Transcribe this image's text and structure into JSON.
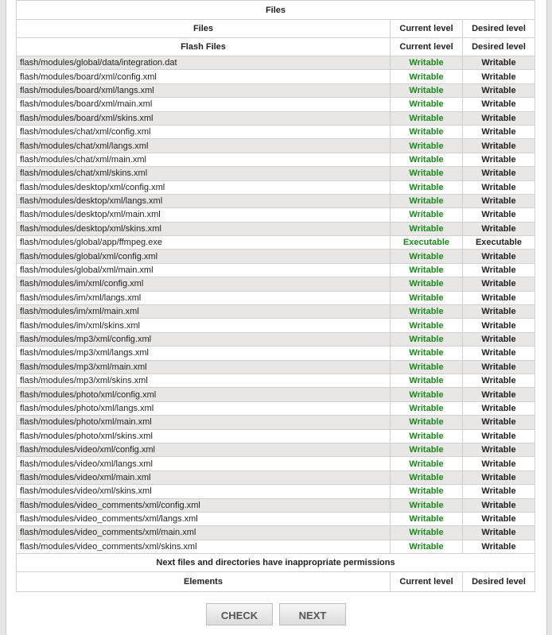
{
  "table": {
    "title": "Files",
    "header": {
      "files": "Files",
      "current": "Current level",
      "desired": "Desired level"
    },
    "section": {
      "name": "Flash Files",
      "current": "Current level",
      "desired": "Desired level"
    },
    "rows": [
      {
        "file": "flash/modules/global/data/integration.dat",
        "current": "Writable",
        "desired": "Writable"
      },
      {
        "file": "flash/modules/board/xml/config.xml",
        "current": "Writable",
        "desired": "Writable"
      },
      {
        "file": "flash/modules/board/xml/langs.xml",
        "current": "Writable",
        "desired": "Writable"
      },
      {
        "file": "flash/modules/board/xml/main.xml",
        "current": "Writable",
        "desired": "Writable"
      },
      {
        "file": "flash/modules/board/xml/skins.xml",
        "current": "Writable",
        "desired": "Writable"
      },
      {
        "file": "flash/modules/chat/xml/config.xml",
        "current": "Writable",
        "desired": "Writable"
      },
      {
        "file": "flash/modules/chat/xml/langs.xml",
        "current": "Writable",
        "desired": "Writable"
      },
      {
        "file": "flash/modules/chat/xml/main.xml",
        "current": "Writable",
        "desired": "Writable"
      },
      {
        "file": "flash/modules/chat/xml/skins.xml",
        "current": "Writable",
        "desired": "Writable"
      },
      {
        "file": "flash/modules/desktop/xml/config.xml",
        "current": "Writable",
        "desired": "Writable"
      },
      {
        "file": "flash/modules/desktop/xml/langs.xml",
        "current": "Writable",
        "desired": "Writable"
      },
      {
        "file": "flash/modules/desktop/xml/main.xml",
        "current": "Writable",
        "desired": "Writable"
      },
      {
        "file": "flash/modules/desktop/xml/skins.xml",
        "current": "Writable",
        "desired": "Writable"
      },
      {
        "file": "flash/modules/global/app/ffmpeg.exe",
        "current": "Executable",
        "desired": "Executable"
      },
      {
        "file": "flash/modules/global/xml/config.xml",
        "current": "Writable",
        "desired": "Writable"
      },
      {
        "file": "flash/modules/global/xml/main.xml",
        "current": "Writable",
        "desired": "Writable"
      },
      {
        "file": "flash/modules/im/xml/config.xml",
        "current": "Writable",
        "desired": "Writable"
      },
      {
        "file": "flash/modules/im/xml/langs.xml",
        "current": "Writable",
        "desired": "Writable"
      },
      {
        "file": "flash/modules/im/xml/main.xml",
        "current": "Writable",
        "desired": "Writable"
      },
      {
        "file": "flash/modules/im/xml/skins.xml",
        "current": "Writable",
        "desired": "Writable"
      },
      {
        "file": "flash/modules/mp3/xml/config.xml",
        "current": "Writable",
        "desired": "Writable"
      },
      {
        "file": "flash/modules/mp3/xml/langs.xml",
        "current": "Writable",
        "desired": "Writable"
      },
      {
        "file": "flash/modules/mp3/xml/main.xml",
        "current": "Writable",
        "desired": "Writable"
      },
      {
        "file": "flash/modules/mp3/xml/skins.xml",
        "current": "Writable",
        "desired": "Writable"
      },
      {
        "file": "flash/modules/photo/xml/config.xml",
        "current": "Writable",
        "desired": "Writable"
      },
      {
        "file": "flash/modules/photo/xml/langs.xml",
        "current": "Writable",
        "desired": "Writable"
      },
      {
        "file": "flash/modules/photo/xml/main.xml",
        "current": "Writable",
        "desired": "Writable"
      },
      {
        "file": "flash/modules/photo/xml/skins.xml",
        "current": "Writable",
        "desired": "Writable"
      },
      {
        "file": "flash/modules/video/xml/config.xml",
        "current": "Writable",
        "desired": "Writable"
      },
      {
        "file": "flash/modules/video/xml/langs.xml",
        "current": "Writable",
        "desired": "Writable"
      },
      {
        "file": "flash/modules/video/xml/main.xml",
        "current": "Writable",
        "desired": "Writable"
      },
      {
        "file": "flash/modules/video/xml/skins.xml",
        "current": "Writable",
        "desired": "Writable"
      },
      {
        "file": "flash/modules/video_comments/xml/config.xml",
        "current": "Writable",
        "desired": "Writable"
      },
      {
        "file": "flash/modules/video_comments/xml/langs.xml",
        "current": "Writable",
        "desired": "Writable"
      },
      {
        "file": "flash/modules/video_comments/xml/main.xml",
        "current": "Writable",
        "desired": "Writable"
      },
      {
        "file": "flash/modules/video_comments/xml/skins.xml",
        "current": "Writable",
        "desired": "Writable"
      }
    ],
    "inappropriate": {
      "message": "Next files and directories have inappropriate permissions",
      "elements": "Elements",
      "current": "Current level",
      "desired": "Desired level"
    }
  },
  "buttons": {
    "check": "CHECK",
    "next": "NEXT"
  },
  "colors": {
    "ok": "#1a8a1a"
  }
}
